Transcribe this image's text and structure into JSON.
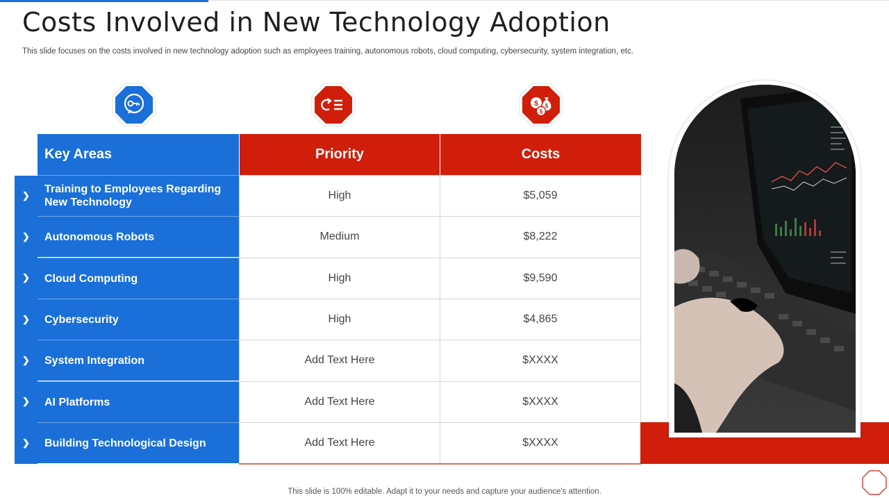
{
  "title": "Costs Involved in New Technology Adoption",
  "subtitle": "This slide focuses on the costs involved in new technology adoption such as employees training, autonomous robots, cloud computing, cybersecurity, system integration, etc.",
  "columns": {
    "key": "Key Areas",
    "priority": "Priority",
    "cost": "Costs"
  },
  "icons": [
    "key-icon",
    "process-list-icon",
    "money-bags-icon"
  ],
  "rows": [
    {
      "chevron": "❯",
      "area": "Training to Employees Regarding New Technology",
      "priority": "High",
      "cost": "$5,059"
    },
    {
      "chevron": "❯",
      "area": "Autonomous Robots",
      "priority": "Medium",
      "cost": "$8,222"
    },
    {
      "chevron": "❯",
      "area": "Cloud Computing",
      "priority": "High",
      "cost": "$9,590"
    },
    {
      "chevron": "❯",
      "area": "Cybersecurity",
      "priority": "High",
      "cost": "$4,865"
    },
    {
      "chevron": "❯",
      "area": "System Integration",
      "priority": "Add Text Here",
      "cost": "$XXXX"
    },
    {
      "chevron": "❯",
      "area": "AI Platforms",
      "priority": "Add Text Here",
      "cost": "$XXXX"
    },
    {
      "chevron": "❯",
      "area": "Building Technological Design",
      "priority": "Add Text Here",
      "cost": "$XXXX"
    }
  ],
  "footer": "This slide is 100% editable. Adapt it to your needs and capture your audience's attention.",
  "colors": {
    "blue": "#1a6fd9",
    "red": "#d01e0a"
  }
}
